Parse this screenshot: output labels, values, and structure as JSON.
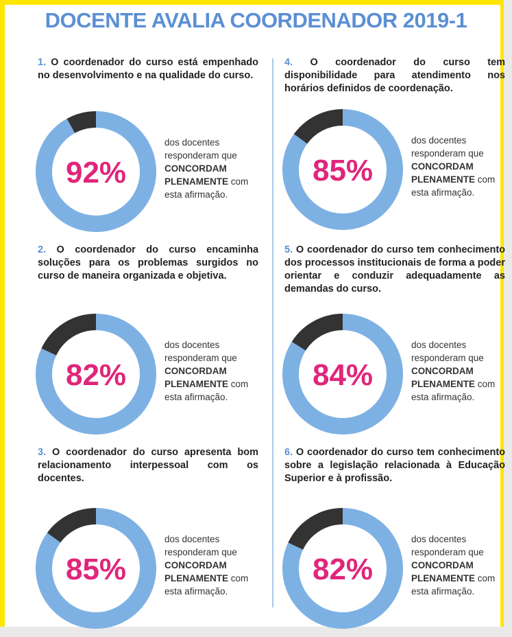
{
  "title": "DOCENTE AVALIA COORDENADOR 2019-1",
  "chart_data": [
    {
      "type": "donut",
      "number": "1.",
      "title": "O coordenador do curso está empenhado no desenvolvimento e na qualidade do curso.",
      "categories": [
        null,
        null
      ],
      "values": [
        92,
        8
      ],
      "value_labels": [
        "92%",
        null
      ],
      "colors": [
        "#7eb1e3",
        "#333333"
      ],
      "note": {
        "before": "dos docentes responderam que",
        "bold": "CONCORDAM PLENAMENTE",
        "after": "com esta afirmação."
      }
    },
    {
      "type": "donut",
      "number": "2.",
      "title": "O coordenador do curso encaminha soluções para os problemas surgidos no curso de maneira organizada e objetiva.",
      "categories": [
        null,
        null
      ],
      "values": [
        82,
        18
      ],
      "value_labels": [
        "82%",
        null
      ],
      "colors": [
        "#7eb1e3",
        "#333333"
      ],
      "note": {
        "before": "dos docentes responderam que",
        "bold": "CONCORDAM PLENAMENTE",
        "after": "com esta afirmação."
      }
    },
    {
      "type": "donut",
      "number": "3.",
      "title": "O coordenador do curso apresenta bom relacionamento interpessoal com os docentes.",
      "categories": [
        null,
        null
      ],
      "values": [
        85,
        15
      ],
      "value_labels": [
        "85%",
        null
      ],
      "colors": [
        "#7eb1e3",
        "#333333"
      ],
      "note": {
        "before": "dos docentes responderam que",
        "bold": "CONCORDAM PLENAMENTE",
        "after": "com esta afirmação."
      }
    },
    {
      "type": "donut",
      "number": "4.",
      "title": "O coordenador do curso tem disponibilidade para atendimento nos horários definidos de coordenação.",
      "categories": [
        null,
        null
      ],
      "values": [
        85,
        15
      ],
      "value_labels": [
        "85%",
        null
      ],
      "colors": [
        "#7eb1e3",
        "#333333"
      ],
      "note": {
        "before": "dos docentes responderam que",
        "bold": "CONCORDAM PLENAMENTE",
        "after": "com esta afirmação."
      }
    },
    {
      "type": "donut",
      "number": "5.",
      "title": "O coordenador do curso tem conhecimento dos processos institucionais de forma a poder orientar e conduzir adequadamente as demandas do curso.",
      "categories": [
        null,
        null
      ],
      "values": [
        84,
        16
      ],
      "value_labels": [
        "84%",
        null
      ],
      "colors": [
        "#7eb1e3",
        "#333333"
      ],
      "note": {
        "before": "dos docentes responderam que",
        "bold": "CONCORDAM PLENAMENTE",
        "after": "com esta afirmação."
      }
    },
    {
      "type": "donut",
      "number": "6.",
      "title": "O coordenador do curso tem conhecimento sobre a legislação relacionada à Educação Superior e à profissão.",
      "categories": [
        null,
        null
      ],
      "values": [
        82,
        18
      ],
      "value_labels": [
        "82%",
        null
      ],
      "colors": [
        "#7eb1e3",
        "#333333"
      ],
      "note": {
        "before": "dos docentes responderam que",
        "bold": "CONCORDAM PLENAMENTE",
        "after": "com esta afirmação."
      }
    }
  ]
}
